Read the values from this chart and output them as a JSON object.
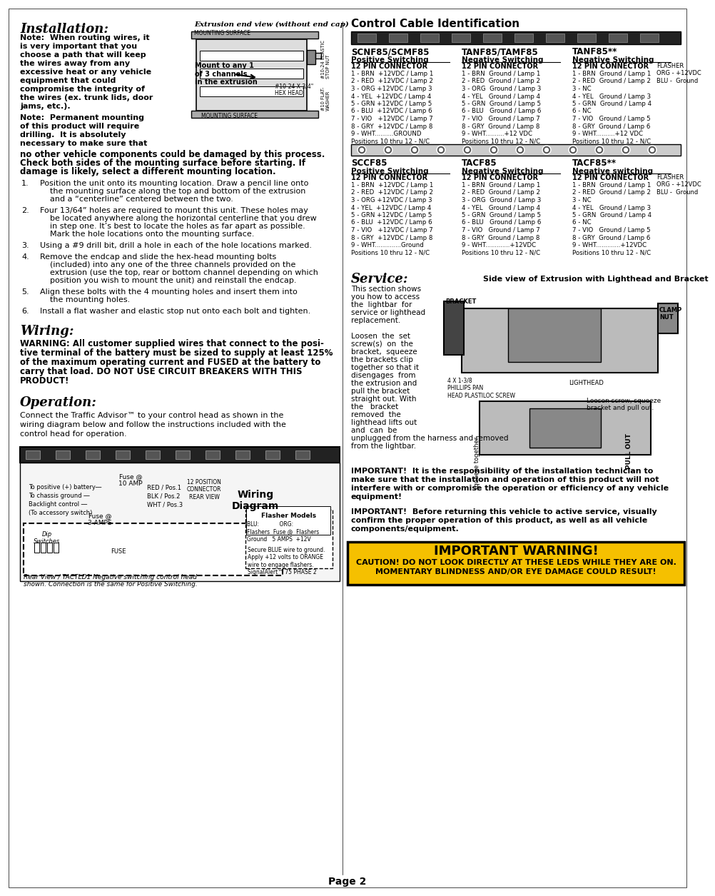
{
  "page_background": "#ffffff",
  "page_number": "Page 2",
  "title_installation": "Installation:",
  "title_wiring": "Wiring:",
  "title_operation": "Operation:",
  "title_service": "Service:",
  "title_control_cable": "Control Cable Identification",
  "title_important_warning": "IMPORTANT WARNING!",
  "extrusion_label": "Extrusion end view (without end cap)",
  "mount_label": "Mount to any 1\nof 3 channels\nin the extrusion",
  "wiring_diagram_label": "Wiring\nDiagram",
  "flasher_models_label": "Flasher Models",
  "rear_view_caption": "Rear View / TACTLD1 Negative switching control head\nshown. Connection is the same for Positive Switching.",
  "fuse_10amp": "Fuse @\n10 AMP",
  "fuse_3amp": "Fuse @\n3 AMPS",
  "side_view_label": "Side view of Extrusion with Lighthead and Bracket",
  "bracket_label": "BRACKET",
  "clamp_nut_label": "CLAMP\nNUT",
  "loosen_label": "Loosen screw, squeeze\nbracket and pull out.",
  "squeeze_label": "squeeze together",
  "pull_label": "PULL OUT",
  "warning_box_bg": "#f5c000",
  "warning_box_border": "#000000",
  "connector_sections": [
    {
      "name": "SCNF85/SCMF85",
      "subtitle": "Positive Switching",
      "connector": "12 PIN CONNECTOR",
      "pins": [
        "1 - BRN  +12VDC / Lamp 1",
        "2 - RED  +12VDC / Lamp 2",
        "3 - ORG +12VDC / Lamp 3",
        "4 - YEL  +12VDC / Lamp 4",
        "5 - GRN +12VDC / Lamp 5",
        "6 - BLU  +12VDC / Lamp 6",
        "7 - VIO   +12VDC / Lamp 7",
        "8 - GRY  +12VDC / Lamp 8",
        "9 - WHT..........GROUND",
        "Positions 10 thru 12 - N/C"
      ]
    },
    {
      "name": "TANF85/TAMF85",
      "subtitle": "Negative Switching",
      "connector": "12 PIN CONNECTOR",
      "pins": [
        "1 - BRN  Ground / Lamp 1",
        "2 - RED  Ground / Lamp 2",
        "3 - ORG  Ground / Lamp 3",
        "4 - YEL   Ground / Lamp 4",
        "5 - GRN  Ground / Lamp 5",
        "6 - BLU   Ground / Lamp 6",
        "7 - VIO   Ground / Lamp 7",
        "8 - GRY  Ground / Lamp 8",
        "9 - WHT..........+12 VDC",
        "Positions 10 thru 12 - N/C"
      ]
    },
    {
      "name": "TANF85**",
      "subtitle": "Negative Switching",
      "connector": "12 PIN CONNECTOR",
      "pins": [
        "1 - BRN  Ground / Lamp 1",
        "2 - RED  Ground / Lamp 2",
        "3 - NC",
        "4 - YEL   Ground / Lamp 3",
        "5 - GRN  Ground / Lamp 4",
        "6 - NC",
        "7 - VIO   Ground / Lamp 5",
        "8 - GRY  Ground / Lamp 6",
        "9 - WHT..........+12 VDC",
        "Positions 10 thru 12 - N/C"
      ],
      "flasher": "FLASHER\nORG - +12VDC\nBLU -  Ground"
    }
  ],
  "connector_sections2": [
    {
      "name": "SCCF85",
      "subtitle": "Positive Switching",
      "connector": "12 PIN CONNECTOR",
      "pins": [
        "1 - BRN  +12VDC / Lamp 1",
        "2 - RED  +12VDC / Lamp 2",
        "3 - ORG +12VDC / Lamp 3",
        "4 - YEL  +12VDC / Lamp 4",
        "5 - GRN +12VDC / Lamp 5",
        "6 - BLU  +12VDC / Lamp 6",
        "7 - VIO   +12VDC / Lamp 7",
        "8 - GRY  +12VDC / Lamp 8",
        "9 - WHT..............Ground",
        "Positions 10 thru 12 - N/C"
      ]
    },
    {
      "name": "TACF85",
      "subtitle": "Negative Switching",
      "connector": "12 PIN CONNECTOR",
      "pins": [
        "1 - BRN  Ground / Lamp 1",
        "2 - RED  Ground / Lamp 2",
        "3 - ORG  Ground / Lamp 3",
        "4 - YEL   Ground / Lamp 4",
        "5 - GRN  Ground / Lamp 5",
        "6 - BLU   Ground / Lamp 6",
        "7 - VIO   Ground / Lamp 7",
        "8 - GRY  Ground / Lamp 8",
        "9 - WHT.............+12VDC",
        "Positions 10 thru 12 - N/C"
      ]
    },
    {
      "name": "TACF85**",
      "subtitle": "Negative switching",
      "connector": "12 PIN CONNECTOR",
      "pins": [
        "1 - BRN  Ground / Lamp 1",
        "2 - RED  Ground / Lamp 2",
        "3 - NC",
        "4 - YEL   Ground / Lamp 3",
        "5 - GRN  Ground / Lamp 4",
        "6 - NC",
        "7 - VIO   Ground / Lamp 5",
        "8 - GRY  Ground / Lamp 6",
        "9 - WHT.............+12VDC",
        "Positions 10 thru 12 - N/C"
      ],
      "flasher": "FLASHER\nORG - +12VDC\nBLU -  Ground"
    }
  ]
}
